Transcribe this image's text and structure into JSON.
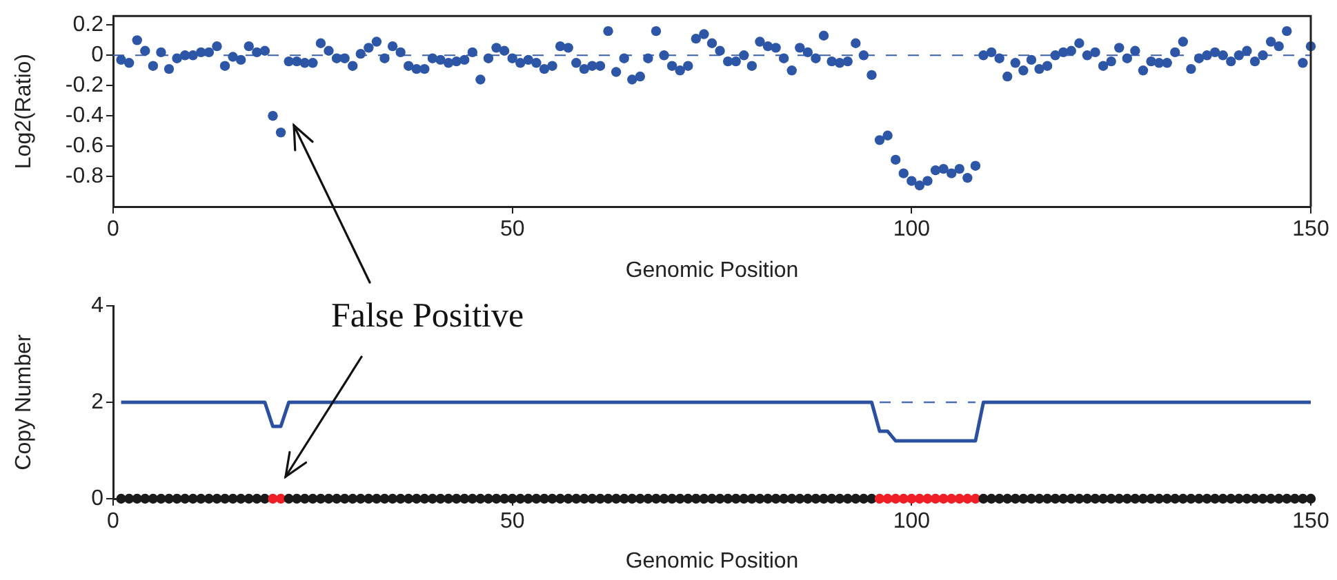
{
  "chart_data": [
    {
      "type": "scatter",
      "xlabel": "Genomic Position",
      "ylabel": "Log2(Ratio)",
      "marker": "circle",
      "legend": false,
      "grid": false,
      "xlim": [
        0,
        150
      ],
      "xticks": [
        0,
        50,
        100,
        150
      ],
      "ylim": [
        -1,
        0.26
      ],
      "yticks": [
        -0.8,
        -0.6,
        -0.4,
        -0.2,
        0,
        0.2
      ],
      "ref_lines": [
        {
          "axis": "y",
          "value": 0,
          "color": "#3a5fae",
          "line_style": "dashed"
        }
      ],
      "x": [
        1,
        2,
        3,
        4,
        5,
        6,
        7,
        8,
        9,
        10,
        11,
        12,
        13,
        14,
        15,
        16,
        17,
        18,
        19,
        20,
        21,
        22,
        23,
        24,
        25,
        26,
        27,
        28,
        29,
        30,
        31,
        32,
        33,
        34,
        35,
        36,
        37,
        38,
        39,
        40,
        41,
        42,
        43,
        44,
        45,
        46,
        47,
        48,
        49,
        50,
        51,
        52,
        53,
        54,
        55,
        56,
        57,
        58,
        59,
        60,
        61,
        62,
        63,
        64,
        65,
        66,
        67,
        68,
        69,
        70,
        71,
        72,
        73,
        74,
        75,
        76,
        77,
        78,
        79,
        80,
        81,
        82,
        83,
        84,
        85,
        86,
        87,
        88,
        89,
        90,
        91,
        92,
        93,
        94,
        95,
        96,
        97,
        98,
        99,
        100,
        101,
        102,
        103,
        104,
        105,
        106,
        107,
        108,
        109,
        110,
        111,
        112,
        113,
        114,
        115,
        116,
        117,
        118,
        119,
        120,
        121,
        122,
        123,
        124,
        125,
        126,
        127,
        128,
        129,
        130,
        131,
        132,
        133,
        134,
        135,
        136,
        137,
        138,
        139,
        140,
        141,
        142,
        143,
        144,
        145,
        146,
        147,
        148,
        149,
        150
      ],
      "series": [
        {
          "color": "#2e56a6",
          "values": [
            -0.03,
            -0.05,
            0.1,
            0.03,
            -0.07,
            0.02,
            -0.09,
            -0.02,
            0,
            0,
            0.02,
            0.02,
            0.06,
            -0.07,
            -0.01,
            -0.03,
            0.06,
            0.02,
            0.03,
            -0.4,
            -0.51,
            -0.04,
            -0.04,
            -0.05,
            -0.05,
            0.08,
            0.03,
            -0.02,
            -0.02,
            -0.07,
            0.01,
            0.05,
            0.09,
            -0.02,
            0.06,
            0.02,
            -0.07,
            -0.09,
            -0.09,
            -0.02,
            -0.03,
            -0.05,
            -0.04,
            -0.03,
            0.02,
            -0.16,
            -0.02,
            0.05,
            0.03,
            -0.02,
            -0.05,
            -0.03,
            -0.05,
            -0.09,
            -0.07,
            0.06,
            0.05,
            -0.05,
            -0.09,
            -0.07,
            -0.07,
            0.16,
            -0.11,
            -0.02,
            -0.16,
            -0.14,
            -0.02,
            0.16,
            0,
            -0.07,
            -0.1,
            -0.07,
            0.11,
            0.14,
            0.08,
            0.03,
            -0.04,
            -0.04,
            0,
            -0.07,
            0.09,
            0.06,
            0.05,
            -0.02,
            -0.1,
            0.05,
            0.02,
            -0.02,
            0.13,
            -0.04,
            -0.05,
            -0.04,
            0.08,
            0,
            -0.13,
            -0.56,
            -0.53,
            -0.69,
            -0.78,
            -0.83,
            -0.86,
            -0.83,
            -0.76,
            -0.75,
            -0.78,
            -0.75,
            -0.81,
            -0.73,
            0,
            0.02,
            -0.02,
            -0.14,
            -0.05,
            -0.1,
            -0.03,
            -0.09,
            -0.07,
            0,
            0.02,
            0.03,
            0.08,
            0,
            0.02,
            -0.07,
            -0.04,
            0.05,
            -0.02,
            0.03,
            -0.1,
            -0.04,
            -0.05,
            -0.05,
            0.02,
            0.09,
            -0.09,
            -0.02,
            0,
            0.02,
            0,
            -0.04,
            0,
            0.03,
            -0.04,
            0,
            0.09,
            0.06,
            0.16,
            null,
            -0.05,
            0.06
          ]
        }
      ]
    },
    {
      "type": "line",
      "xlabel": "Genomic Position",
      "ylabel": "Copy Number",
      "legend": false,
      "grid": false,
      "xlim": [
        0,
        150
      ],
      "xticks": [
        0,
        50,
        100,
        150
      ],
      "ylim": [
        0,
        4
      ],
      "yticks": [
        0,
        2,
        4
      ],
      "annotations": [
        "False Positive"
      ],
      "x": [
        1,
        2,
        3,
        4,
        5,
        6,
        7,
        8,
        9,
        10,
        11,
        12,
        13,
        14,
        15,
        16,
        17,
        18,
        19,
        20,
        21,
        22,
        23,
        24,
        25,
        26,
        27,
        28,
        29,
        30,
        31,
        32,
        33,
        34,
        35,
        36,
        37,
        38,
        39,
        40,
        41,
        42,
        43,
        44,
        45,
        46,
        47,
        48,
        49,
        50,
        51,
        52,
        53,
        54,
        55,
        56,
        57,
        58,
        59,
        60,
        61,
        62,
        63,
        64,
        65,
        66,
        67,
        68,
        69,
        70,
        71,
        72,
        73,
        74,
        75,
        76,
        77,
        78,
        79,
        80,
        81,
        82,
        83,
        84,
        85,
        86,
        87,
        88,
        89,
        90,
        91,
        92,
        93,
        94,
        95,
        96,
        97,
        98,
        99,
        100,
        101,
        102,
        103,
        104,
        105,
        106,
        107,
        108,
        109,
        110,
        111,
        112,
        113,
        114,
        115,
        116,
        117,
        118,
        119,
        120,
        121,
        122,
        123,
        124,
        125,
        126,
        127,
        128,
        129,
        130,
        131,
        132,
        133,
        134,
        135,
        136,
        137,
        138,
        139,
        140,
        141,
        142,
        143,
        144,
        145,
        146,
        147,
        148,
        149,
        150
      ],
      "series": [
        {
          "color": "#2b50a0",
          "marker": "none",
          "line_style": "solid",
          "x": [
            1,
            19,
            20,
            21,
            22,
            95,
            96,
            97,
            98,
            108,
            109,
            150
          ],
          "values": [
            2,
            2,
            1.5,
            1.5,
            2,
            2,
            1.4,
            1.4,
            1.2,
            1.2,
            2,
            2
          ]
        },
        {
          "color": "#4a6cb5",
          "marker": "none",
          "line_style": "dashed",
          "x": [
            96,
            108
          ],
          "values": [
            2,
            2
          ]
        },
        {
          "type": "scatter",
          "marker": "circle",
          "colors": [
            "#1a1a1a",
            "#1a1a1a",
            "#1a1a1a",
            "#1a1a1a",
            "#1a1a1a",
            "#1a1a1a",
            "#1a1a1a",
            "#1a1a1a",
            "#1a1a1a",
            "#1a1a1a",
            "#1a1a1a",
            "#1a1a1a",
            "#1a1a1a",
            "#1a1a1a",
            "#1a1a1a",
            "#1a1a1a",
            "#1a1a1a",
            "#1a1a1a",
            "#1a1a1a",
            "#ee2026",
            "#ee2026",
            "#1a1a1a",
            "#1a1a1a",
            "#1a1a1a",
            "#1a1a1a",
            "#1a1a1a",
            "#1a1a1a",
            "#1a1a1a",
            "#1a1a1a",
            "#1a1a1a",
            "#1a1a1a",
            "#1a1a1a",
            "#1a1a1a",
            "#1a1a1a",
            "#1a1a1a",
            "#1a1a1a",
            "#1a1a1a",
            "#1a1a1a",
            "#1a1a1a",
            "#1a1a1a",
            "#1a1a1a",
            "#1a1a1a",
            "#1a1a1a",
            "#1a1a1a",
            "#1a1a1a",
            "#1a1a1a",
            "#1a1a1a",
            "#1a1a1a",
            "#1a1a1a",
            "#1a1a1a",
            "#1a1a1a",
            "#1a1a1a",
            "#1a1a1a",
            "#1a1a1a",
            "#1a1a1a",
            "#1a1a1a",
            "#1a1a1a",
            "#1a1a1a",
            "#1a1a1a",
            "#1a1a1a",
            "#1a1a1a",
            "#1a1a1a",
            "#1a1a1a",
            "#1a1a1a",
            "#1a1a1a",
            "#1a1a1a",
            "#1a1a1a",
            "#1a1a1a",
            "#1a1a1a",
            "#1a1a1a",
            "#1a1a1a",
            "#1a1a1a",
            "#1a1a1a",
            "#1a1a1a",
            "#1a1a1a",
            "#1a1a1a",
            "#1a1a1a",
            "#1a1a1a",
            "#1a1a1a",
            "#1a1a1a",
            "#1a1a1a",
            "#1a1a1a",
            "#1a1a1a",
            "#1a1a1a",
            "#1a1a1a",
            "#1a1a1a",
            "#1a1a1a",
            "#1a1a1a",
            "#1a1a1a",
            "#1a1a1a",
            "#1a1a1a",
            "#1a1a1a",
            "#1a1a1a",
            "#1a1a1a",
            "#1a1a1a",
            "#ee2026",
            "#ee2026",
            "#ee2026",
            "#ee2026",
            "#ee2026",
            "#ee2026",
            "#ee2026",
            "#ee2026",
            "#ee2026",
            "#ee2026",
            "#ee2026",
            "#ee2026",
            "#ee2026",
            "#1a1a1a",
            "#1a1a1a",
            "#1a1a1a",
            "#1a1a1a",
            "#1a1a1a",
            "#1a1a1a",
            "#1a1a1a",
            "#1a1a1a",
            "#1a1a1a",
            "#1a1a1a",
            "#1a1a1a",
            "#1a1a1a",
            "#1a1a1a",
            "#1a1a1a",
            "#1a1a1a",
            "#1a1a1a",
            "#1a1a1a",
            "#1a1a1a",
            "#1a1a1a",
            "#1a1a1a",
            "#1a1a1a",
            "#1a1a1a",
            "#1a1a1a",
            "#1a1a1a",
            "#1a1a1a",
            "#1a1a1a",
            "#1a1a1a",
            "#1a1a1a",
            "#1a1a1a",
            "#1a1a1a",
            "#1a1a1a",
            "#1a1a1a",
            "#1a1a1a",
            "#1a1a1a",
            "#1a1a1a",
            "#1a1a1a",
            "#1a1a1a",
            "#1a1a1a",
            "#1a1a1a",
            "#1a1a1a",
            "#1a1a1a",
            "#1a1a1a"
          ],
          "values": [
            0,
            0,
            0,
            0,
            0,
            0,
            0,
            0,
            0,
            0,
            0,
            0,
            0,
            0,
            0,
            0,
            0,
            0,
            0,
            0,
            0,
            0,
            0,
            0,
            0,
            0,
            0,
            0,
            0,
            0,
            0,
            0,
            0,
            0,
            0,
            0,
            0,
            0,
            0,
            0,
            0,
            0,
            0,
            0,
            0,
            0,
            0,
            0,
            0,
            0,
            0,
            0,
            0,
            0,
            0,
            0,
            0,
            0,
            0,
            0,
            0,
            0,
            0,
            0,
            0,
            0,
            0,
            0,
            0,
            0,
            0,
            0,
            0,
            0,
            0,
            0,
            0,
            0,
            0,
            0,
            0,
            0,
            0,
            0,
            0,
            0,
            0,
            0,
            0,
            0,
            0,
            0,
            0,
            0,
            0,
            0,
            0,
            0,
            0,
            0,
            0,
            0,
            0,
            0,
            0,
            0,
            0,
            0,
            0,
            0,
            0,
            0,
            0,
            0,
            0,
            0,
            0,
            0,
            0,
            0,
            0,
            0,
            0,
            0,
            0,
            0,
            0,
            0,
            0,
            0,
            0,
            0,
            0,
            0,
            0,
            0,
            0,
            0,
            0,
            0,
            0,
            0,
            0,
            0,
            0,
            0,
            0,
            0,
            0,
            0
          ]
        }
      ]
    }
  ]
}
